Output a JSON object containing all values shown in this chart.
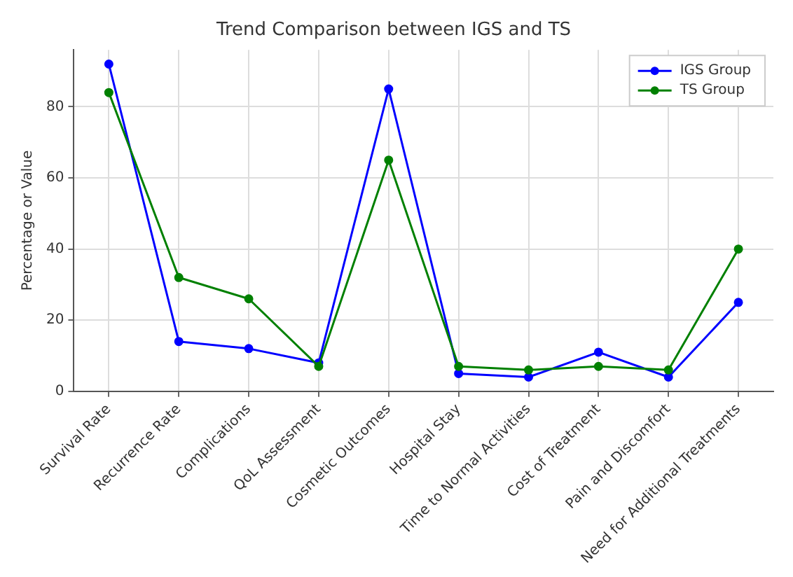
{
  "chart_data": {
    "type": "line",
    "title": "Trend Comparison between IGS and TS",
    "ylabel": "Percentage or Value",
    "categories": [
      "Survival Rate",
      "Recurrence Rate",
      "Complications",
      "QoL Assessment",
      "Cosmetic Outcomes",
      "Hospital Stay",
      "Time to Normal Activities",
      "Cost of Treatment",
      "Pain and Discomfort",
      "Need for Additional Treatments"
    ],
    "series": [
      {
        "name": "IGS Group",
        "color": "#0000ff",
        "values": [
          92,
          14,
          12,
          8,
          85,
          5,
          4,
          11,
          4,
          25
        ]
      },
      {
        "name": "TS Group",
        "color": "#008000",
        "values": [
          84,
          32,
          26,
          7,
          65,
          7,
          6,
          7,
          6,
          40
        ]
      }
    ],
    "ylim": [
      0,
      96
    ],
    "yticks": [
      0,
      20,
      40,
      60,
      80
    ],
    "grid": true,
    "legend": "top right",
    "marker": "circle",
    "line_style": "solid"
  }
}
